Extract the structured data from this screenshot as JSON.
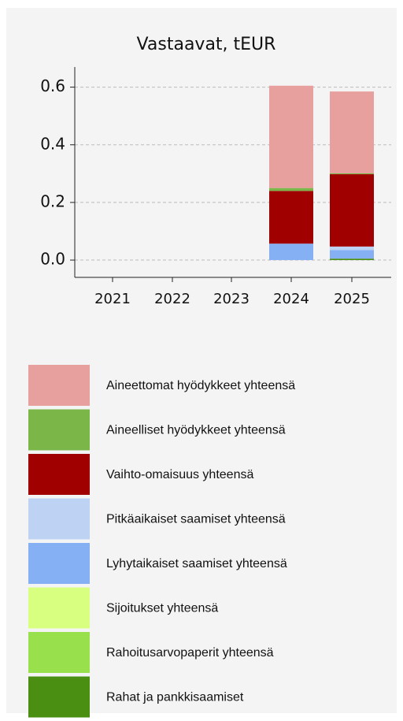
{
  "chart_data": {
    "type": "stacked_bar",
    "title": "Vastaavat, tEUR",
    "categories": [
      "2021",
      "2022",
      "2023",
      "2024",
      "2025"
    ],
    "series": [
      {
        "name": "Aineettomat hyödykkeet yhteensä",
        "color": "#e8a09e",
        "values": [
          0,
          0,
          0,
          0.355,
          0.284
        ]
      },
      {
        "name": "Aineelliset hyödykkeet yhteensä",
        "color": "#7ab648",
        "values": [
          0,
          0,
          0,
          0.01,
          0.003
        ]
      },
      {
        "name": "Vaihto-omaisuus yhteensä",
        "color": "#a10000",
        "values": [
          0,
          0,
          0,
          0.183,
          0.251
        ]
      },
      {
        "name": "Pitkäaikaiset saamiset yhteensä",
        "color": "#bed3f4",
        "values": [
          0,
          0,
          0,
          0,
          0.012
        ]
      },
      {
        "name": "Lyhytaikaiset saamiset yhteensä",
        "color": "#86b0f4",
        "values": [
          0,
          0,
          0,
          0.057,
          0.03
        ]
      },
      {
        "name": "Sijoitukset yhteensä",
        "color": "#d9ff80",
        "values": [
          0,
          0,
          0,
          0,
          0
        ]
      },
      {
        "name": "Rahoitusarvopaperit yhteensä",
        "color": "#98e04c",
        "values": [
          0,
          0,
          0,
          0,
          0
        ]
      },
      {
        "name": "Rahat ja pankkisaamiset",
        "color": "#4b8f12",
        "values": [
          0,
          0,
          0,
          0,
          0.005
        ]
      }
    ],
    "ylim": [
      -0.06,
      0.67
    ],
    "yticks": [
      {
        "value": 0,
        "label": "0.0"
      },
      0.2,
      0.4,
      0.6
    ],
    "grid": true
  }
}
